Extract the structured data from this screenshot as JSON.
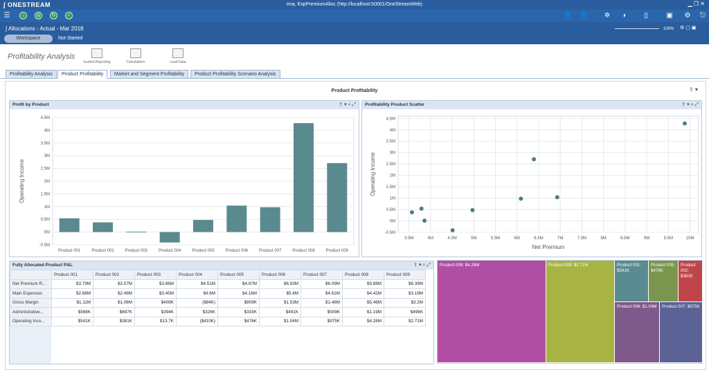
{
  "app": {
    "logo": "∫ ONESTREAM",
    "window_title": "tma, ExpPremiumAlloc (http://localhost:50001/OneStreamWeb)"
  },
  "workspace": {
    "breadcrumb": "Allocations - Actual - Mar 2018",
    "pill": "Workspace",
    "status": "Not Started",
    "zoom": "100%"
  },
  "page": {
    "title": "Profitability Analysis",
    "ribbon": [
      "Guided Reporting",
      "Calculations",
      "Load Data"
    ]
  },
  "tabs": [
    "Profitability Analysis",
    "Product Profitability",
    "Market and Segment Profitability",
    "Product Profitability Scenario Analysis"
  ],
  "dashboard_title": "Product Profitability",
  "bar_panel_title": "Profit by Product",
  "scatter_panel_title": "Profitability Product Scatter",
  "table_panel_title": "Fully Allocated Product P&L",
  "colors": {
    "bar": "#5a8a8e",
    "point": "#4f7c82",
    "header": "#2a5d9d"
  },
  "chart_data": [
    {
      "type": "bar",
      "xlabel": "",
      "ylabel": "Operating Income",
      "categories": [
        "Product 001",
        "Product 002",
        "Product 003",
        "Product 004",
        "Product 005",
        "Product 006",
        "Product 007",
        "Product 008",
        "Product 009"
      ],
      "values": [
        0.541,
        0.381,
        0.0137,
        -0.41,
        0.476,
        1.04,
        0.975,
        4.28,
        2.71
      ],
      "yticks": [
        "4.5M",
        "4M",
        "3.5M",
        "3M",
        "2.5M",
        "2M",
        "1.5M",
        "1M",
        "0.5M",
        "0M",
        "-0.5M"
      ],
      "ylim": [
        -0.5,
        4.5
      ],
      "grid": true
    },
    {
      "type": "scatter",
      "xlabel": "Net Premium",
      "ylabel": "Operating Income",
      "xticks": [
        "3.5M",
        "4M",
        "4.5M",
        "5M",
        "5.5M",
        "6M",
        "6.5M",
        "7M",
        "7.5M",
        "8M",
        "8.5M",
        "9M",
        "9.5M",
        "10M"
      ],
      "yticks": [
        "4.5M",
        "4M",
        "3.5M",
        "3M",
        "2.5M",
        "2M",
        "1.5M",
        "1M",
        "0.5M",
        "0M",
        "-0.5M"
      ],
      "xlim": [
        3.25,
        10.2
      ],
      "ylim": [
        -0.5,
        4.6
      ],
      "points": [
        {
          "x": 3.57,
          "y": 0.381
        },
        {
          "x": 3.79,
          "y": 0.541
        },
        {
          "x": 3.86,
          "y": 0.0137
        },
        {
          "x": 4.51,
          "y": -0.41
        },
        {
          "x": 4.97,
          "y": 0.476
        },
        {
          "x": 6.09,
          "y": 0.975
        },
        {
          "x": 6.39,
          "y": 2.71
        },
        {
          "x": 6.93,
          "y": 1.04
        },
        {
          "x": 9.88,
          "y": 4.28
        }
      ],
      "grid": true
    }
  ],
  "table": {
    "columns": [
      "Product 001",
      "Product 002",
      "Product 003",
      "Product 004",
      "Product 005",
      "Product 006",
      "Product 007",
      "Product 008",
      "Product 009"
    ],
    "rows": [
      {
        "label": "Net Premium R...",
        "values": [
          "$3.79M",
          "$3.57M",
          "$3.86M",
          "$4.51M",
          "$4.97M",
          "$6.93M",
          "$6.09M",
          "$9.88M",
          "$6.39M"
        ]
      },
      {
        "label": "Main Expenses",
        "values": [
          "$2.68M",
          "$2.49M",
          "$3.45M",
          "$4.6M",
          "$4.16M",
          "$5.4M",
          "$4.61M",
          "$4.42M",
          "$3.19M"
        ]
      },
      {
        "label": "Gross Margin",
        "values": [
          "$1.11M",
          "$1.08M",
          "$408K",
          "($84K)",
          "$809K",
          "$1.53M",
          "$1.48M",
          "$5.46M",
          "$3.2M"
        ]
      },
      {
        "label": "Administrative...",
        "values": [
          "$568K",
          "$697K",
          "$394K",
          "$326K",
          "$333K",
          "$491K",
          "$509K",
          "$1.19M",
          "$496K"
        ]
      },
      {
        "label": "Operating Inco...",
        "values": [
          "$541K",
          "$381K",
          "$13.7K",
          "($410K)",
          "$476K",
          "$1.04M",
          "$975K",
          "$4.28M",
          "$2.71M"
        ]
      }
    ]
  },
  "treemap": [
    {
      "label": "Product 008: $4.28M",
      "color": "#b04ea3"
    },
    {
      "label": "Product 009: $2.71M",
      "color": "#a7b444"
    },
    {
      "label": "Product 001: $541K",
      "color": "#5a8b90"
    },
    {
      "label": "Product 005: $476K",
      "color": "#7a964e"
    },
    {
      "label": "Product 002: $381K",
      "color": "#c0454a"
    },
    {
      "label": "Product 006: $1.04M",
      "color": "#7d5a8a"
    },
    {
      "label": "Product 007: $975K",
      "color": "#5a6296"
    }
  ]
}
